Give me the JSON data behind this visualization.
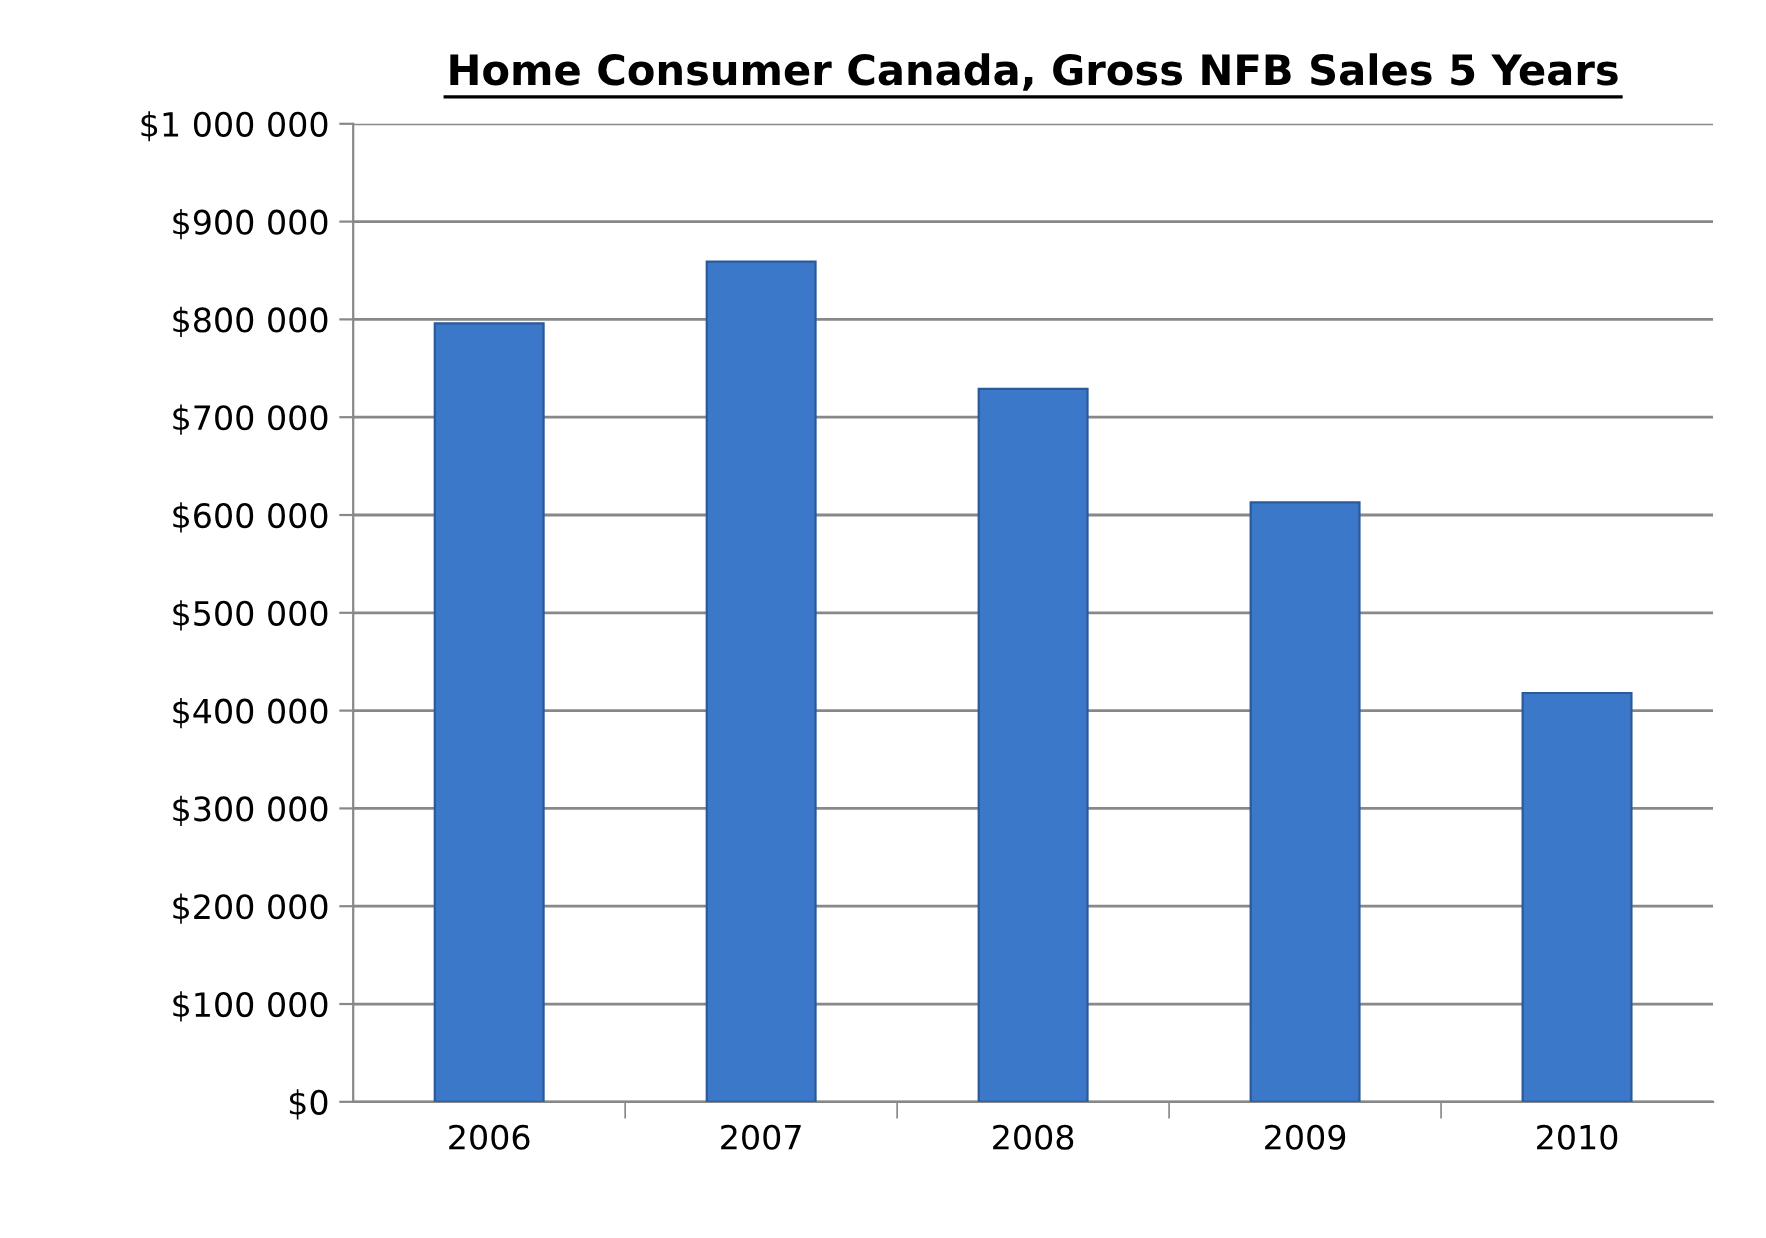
{
  "chart_data": {
    "type": "bar",
    "title": "Home Consumer Canada, Gross NFB Sales 5 Years",
    "categories": [
      "2006",
      "2007",
      "2008",
      "2009",
      "2010"
    ],
    "values": [
      796000,
      859000,
      729000,
      613000,
      418000
    ],
    "color": "#3b78c9",
    "ylim": [
      0,
      1000000
    ],
    "yticks": [
      {
        "value": 0,
        "label": "$0"
      },
      {
        "value": 100000,
        "label": "$100 000"
      },
      {
        "value": 200000,
        "label": "$200 000"
      },
      {
        "value": 300000,
        "label": "$300 000"
      },
      {
        "value": 400000,
        "label": "$400 000"
      },
      {
        "value": 500000,
        "label": "$500 000"
      },
      {
        "value": 600000,
        "label": "$600 000"
      },
      {
        "value": 700000,
        "label": "$700 000"
      },
      {
        "value": 800000,
        "label": "$800 000"
      },
      {
        "value": 900000,
        "label": "$900 000"
      },
      {
        "value": 1000000,
        "label": "$1 000 000"
      }
    ],
    "grid": "y",
    "legend": false
  }
}
